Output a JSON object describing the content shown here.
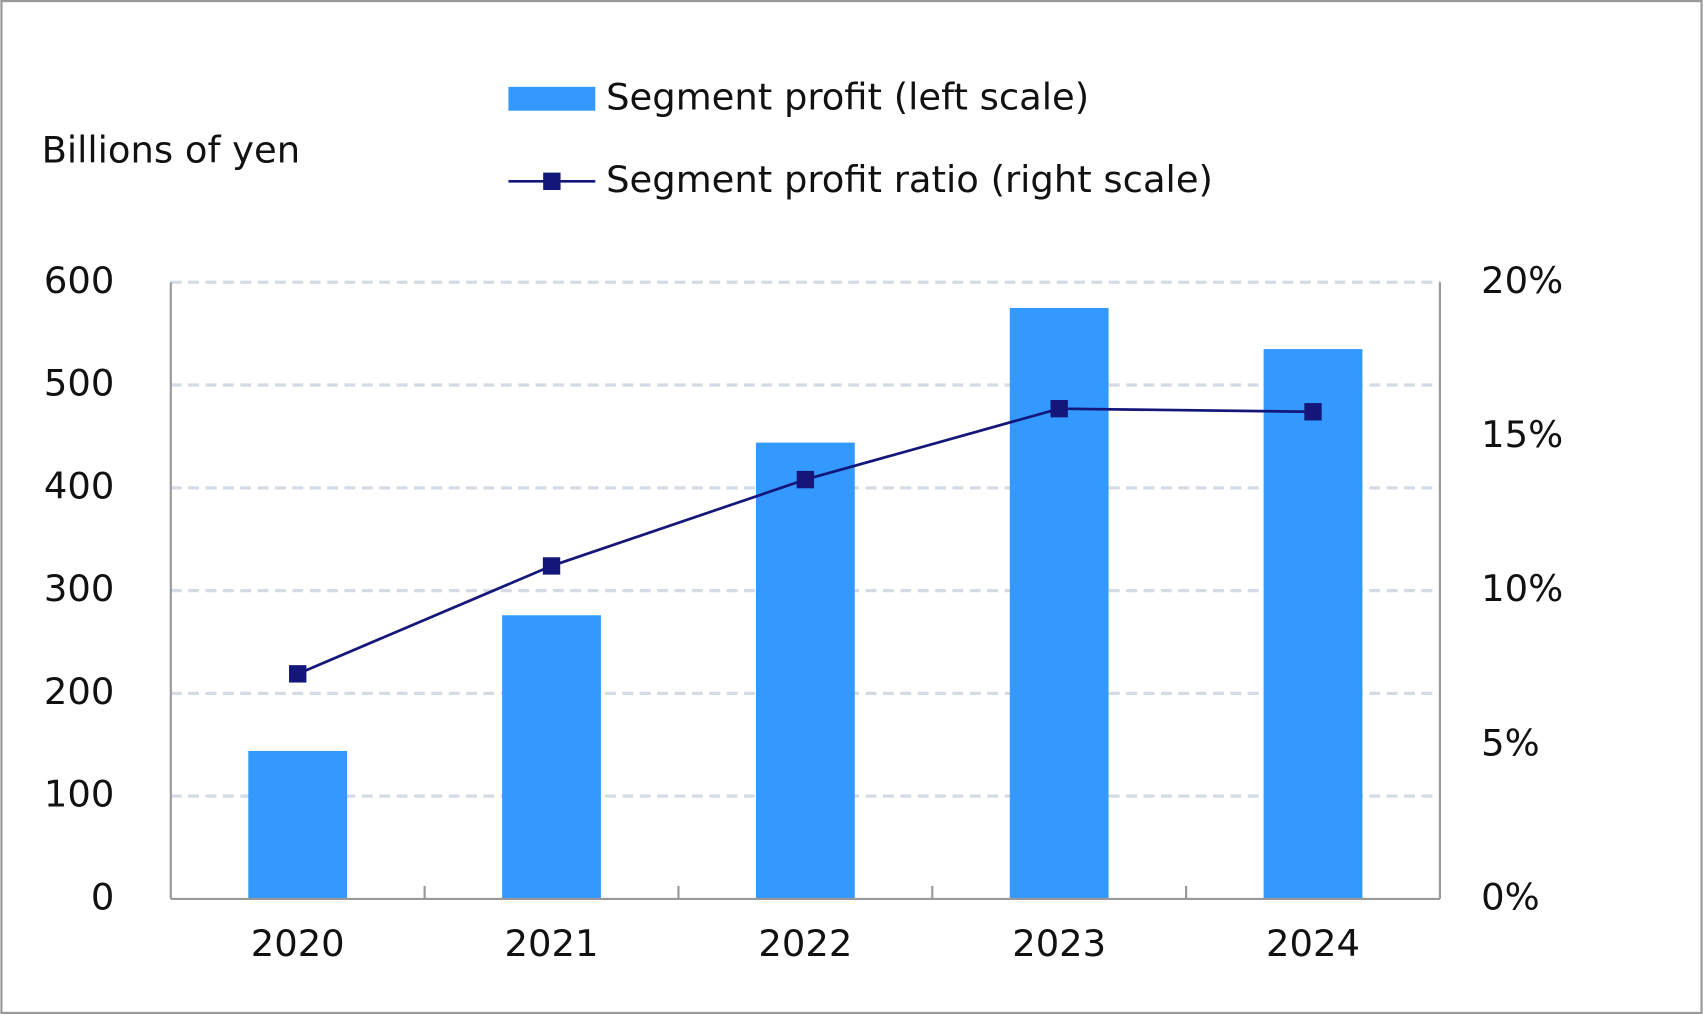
{
  "chart_data": {
    "type": "bar",
    "y_label": "Billions of yen",
    "categories": [
      "2020",
      "2021",
      "2022",
      "2023",
      "2024"
    ],
    "series": [
      {
        "name": "Segment profit (left scale)",
        "type": "bar",
        "color": "#3399ff",
        "values": [
          144,
          276,
          444,
          575,
          535
        ]
      },
      {
        "name": "Segment profit ratio (right scale)",
        "type": "line",
        "color": "#14167a",
        "axis": "y2",
        "values": [
          7.3,
          10.8,
          13.6,
          15.9,
          15.8
        ]
      }
    ],
    "ylim": [
      0,
      600
    ],
    "yticks": [
      0,
      100,
      200,
      300,
      400,
      500,
      600
    ],
    "y2lim": [
      0,
      20
    ],
    "y2ticks": [
      {
        "value": 0,
        "label": "0%"
      },
      {
        "value": 5,
        "label": "5%"
      },
      {
        "value": 10,
        "label": "10%"
      },
      {
        "value": 15,
        "label": "15%"
      },
      {
        "value": 20,
        "label": "20%"
      }
    ],
    "grid": true
  }
}
